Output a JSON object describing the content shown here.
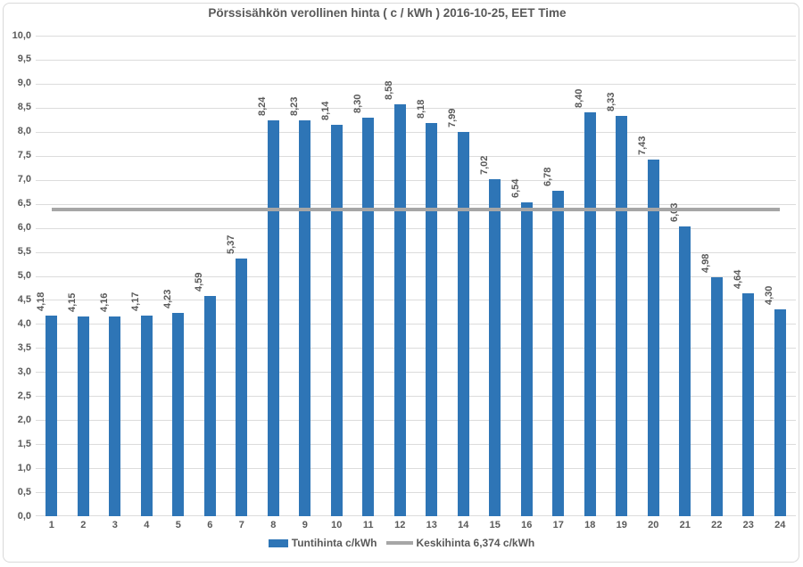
{
  "title": "Pörssisähkön verollinen hinta ( c / kWh ) 2016-10-25, EET Time",
  "colors": {
    "bar": "#2E75B6",
    "average_line": "#A6A6A6",
    "gridline": "#DCDCDC",
    "text": "#595959",
    "border": "#D9D9D9"
  },
  "legend": {
    "series_label": "Tuntihinta c/kWh",
    "average_label": "Keskihinta 6,374 c/kWh"
  },
  "chart_data": {
    "type": "bar",
    "title": "Pörssisähkön verollinen hinta ( c / kWh ) 2016-10-25, EET Time",
    "xlabel": "",
    "ylabel": "",
    "ylim": [
      0,
      10
    ],
    "ytick_step": 0.5,
    "grid": true,
    "legend_position": "bottom",
    "categories": [
      "1",
      "2",
      "3",
      "4",
      "5",
      "6",
      "7",
      "8",
      "9",
      "10",
      "11",
      "12",
      "13",
      "14",
      "15",
      "16",
      "17",
      "18",
      "19",
      "20",
      "21",
      "22",
      "23",
      "24"
    ],
    "series": [
      {
        "name": "Tuntihinta c/kWh",
        "color": "#2E75B6",
        "values": [
          4.18,
          4.15,
          4.16,
          4.17,
          4.23,
          4.59,
          5.37,
          8.24,
          8.23,
          8.14,
          8.3,
          8.58,
          8.18,
          7.99,
          7.02,
          6.54,
          6.78,
          8.4,
          8.33,
          7.43,
          6.03,
          4.98,
          4.64,
          4.3
        ],
        "labels": [
          "4,18",
          "4,15",
          "4,16",
          "4,17",
          "4,23",
          "4,59",
          "5,37",
          "8,24",
          "8,23",
          "8,14",
          "8,30",
          "8,58",
          "8,18",
          "7,99",
          "7,02",
          "6,54",
          "6,78",
          "8,40",
          "8,33",
          "7,43",
          "6,03",
          "4,98",
          "4,64",
          "4,30"
        ]
      }
    ],
    "average_line": {
      "name": "Keskihinta 6,374 c/kWh",
      "value": 6.374,
      "color": "#A6A6A6"
    },
    "ytick_labels": [
      "0,0",
      "0,5",
      "1,0",
      "1,5",
      "2,0",
      "2,5",
      "3,0",
      "3,5",
      "4,0",
      "4,5",
      "5,0",
      "5,5",
      "6,0",
      "6,5",
      "7,0",
      "7,5",
      "8,0",
      "8,5",
      "9,0",
      "9,5",
      "10,0"
    ]
  }
}
